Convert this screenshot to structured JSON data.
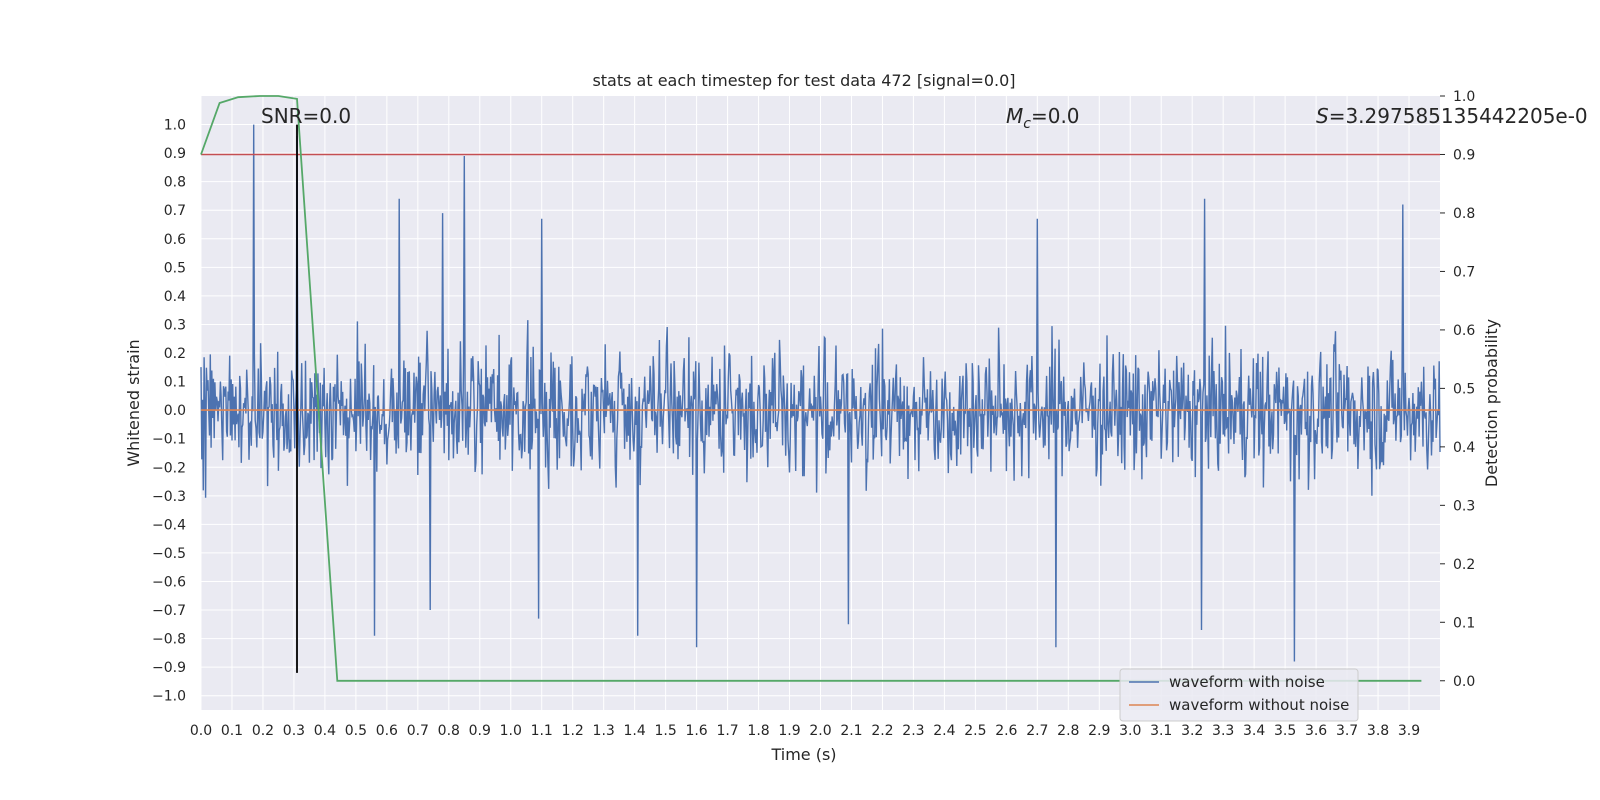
{
  "chart_data": {
    "type": "line",
    "title": "stats at each timestep for test data 472 [signal=0.0]",
    "xlabel": "Time (s)",
    "ylabel_left": "Whitened strain",
    "ylabel_right": "Detection probability",
    "xlim": [
      0.0,
      4.0
    ],
    "ylim_left": [
      -1.05,
      1.1
    ],
    "ylim_right": [
      -0.05,
      1.0
    ],
    "x_ticks": [
      "0.0",
      "0.1",
      "0.2",
      "0.3",
      "0.4",
      "0.5",
      "0.6",
      "0.7",
      "0.8",
      "0.9",
      "1.0",
      "1.1",
      "1.2",
      "1.3",
      "1.4",
      "1.5",
      "1.6",
      "1.7",
      "1.8",
      "1.9",
      "2.0",
      "2.1",
      "2.2",
      "2.3",
      "2.4",
      "2.5",
      "2.6",
      "2.7",
      "2.8",
      "2.9",
      "3.0",
      "3.1",
      "3.2",
      "3.3",
      "3.4",
      "3.5",
      "3.6",
      "3.7",
      "3.8",
      "3.9"
    ],
    "y_ticks_left": [
      "1.0",
      "0.9",
      "0.8",
      "0.7",
      "0.6",
      "0.5",
      "0.4",
      "0.3",
      "0.2",
      "0.1",
      "0.0",
      "−0.1",
      "−0.2",
      "−0.3",
      "−0.4",
      "−0.5",
      "−0.6",
      "−0.7",
      "−0.8",
      "−0.9",
      "−1.0"
    ],
    "y_ticks_right": [
      "1.0",
      "0.9",
      "0.8",
      "0.7",
      "0.6",
      "0.5",
      "0.4",
      "0.3",
      "0.2",
      "0.1",
      "0.0"
    ],
    "annotations": {
      "snr": "SNR=0.0",
      "mc_symbol": "M",
      "mc_sub": "c",
      "mc_value": "=0.0",
      "s_symbol": "S",
      "s_value": "=3.297585135442205e-0"
    },
    "series": [
      {
        "name": "waveform with noise",
        "axis": "left",
        "color": "#4c72b0",
        "description": "dense whitened noise, amplitude mostly within ±0.5",
        "noise_envelope": 0.48,
        "spikes": [
          {
            "x": 0.17,
            "y": 1.0
          },
          {
            "x": 0.31,
            "y": 0.96
          },
          {
            "x": 0.85,
            "y": 0.89
          },
          {
            "x": 0.64,
            "y": 0.74
          },
          {
            "x": 0.78,
            "y": 0.69
          },
          {
            "x": 1.1,
            "y": 0.67
          },
          {
            "x": 3.24,
            "y": 0.74
          },
          {
            "x": 3.88,
            "y": 0.72
          },
          {
            "x": 2.7,
            "y": 0.67
          },
          {
            "x": 1.6,
            "y": -0.83
          },
          {
            "x": 2.76,
            "y": -0.83
          },
          {
            "x": 3.53,
            "y": -0.88
          },
          {
            "x": 1.41,
            "y": -0.79
          },
          {
            "x": 0.56,
            "y": -0.79
          },
          {
            "x": 2.09,
            "y": -0.75
          },
          {
            "x": 1.09,
            "y": -0.73
          },
          {
            "x": 3.23,
            "y": -0.77
          },
          {
            "x": 0.74,
            "y": -0.7
          }
        ]
      },
      {
        "name": "waveform without noise",
        "axis": "left",
        "color": "#dd8452",
        "x": [
          0.0,
          4.0
        ],
        "y": [
          0.0,
          0.0
        ]
      },
      {
        "name": "detection probability",
        "axis": "right",
        "color": "#55a868",
        "x": [
          0.0,
          0.06,
          0.12,
          0.19,
          0.25,
          0.31,
          0.44,
          3.94
        ],
        "y": [
          0.9,
          0.988,
          0.998,
          1.0,
          1.0,
          0.995,
          0.0,
          0.0
        ]
      },
      {
        "name": "threshold",
        "axis": "right",
        "color": "#c44e52",
        "x": [
          0.0,
          4.0
        ],
        "y": [
          0.9,
          0.9
        ]
      },
      {
        "name": "peak marker",
        "axis": "left",
        "color": "#000000",
        "x": [
          0.31,
          0.31
        ],
        "y": [
          -0.92,
          1.0
        ]
      }
    ],
    "legend": {
      "placement": "bottom-right",
      "entries": [
        {
          "label": "waveform with noise",
          "color": "#4c72b0"
        },
        {
          "label": "waveform without noise",
          "color": "#dd8452"
        }
      ]
    },
    "grid": true,
    "background": "#eaeaf2"
  }
}
